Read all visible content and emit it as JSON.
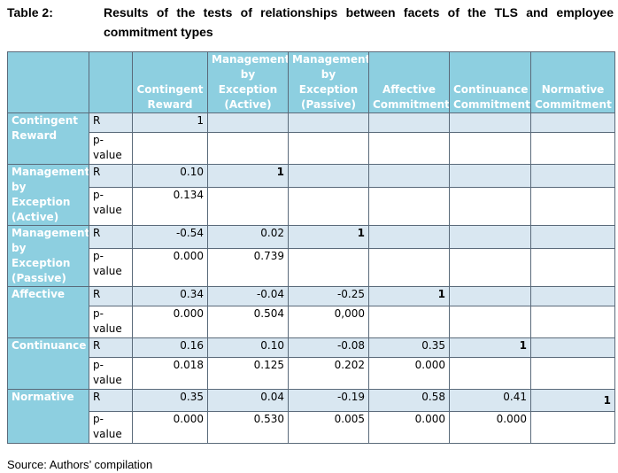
{
  "caption": {
    "label": "Table 2:",
    "text": "Results of the tests of relationships between facets of the TLS and employee commitment types"
  },
  "columns": [
    "Contingent Reward",
    "Management by Exception (Active)",
    "Management by Exception (Passive)",
    "Affective Commitment",
    "Continuance Commitment",
    "Normative Commitment"
  ],
  "rows": [
    {
      "name": "Contingent Reward",
      "r_label": "R",
      "p_label": "p-value",
      "r": [
        "1",
        "",
        "",
        "",
        "",
        ""
      ],
      "p": [
        "",
        "",
        "",
        "",
        "",
        ""
      ]
    },
    {
      "name": "Management by Exception (Active)",
      "r_label": "R",
      "p_label": "p-value",
      "r": [
        "0.10",
        "1",
        "",
        "",
        "",
        ""
      ],
      "p": [
        "0.134",
        "",
        "",
        "",
        "",
        ""
      ]
    },
    {
      "name": "Management by Exception (Passive)",
      "r_label": "R",
      "p_label": "p-value",
      "r": [
        "-0.54",
        "0.02",
        "1",
        "",
        "",
        ""
      ],
      "p": [
        "0.000",
        "0.739",
        "",
        "",
        "",
        ""
      ]
    },
    {
      "name": "Affective",
      "r_label": "R",
      "p_label": "p-value",
      "r": [
        "0.34",
        "-0.04",
        "-0.25",
        "1",
        "",
        ""
      ],
      "p": [
        "0.000",
        "0.504",
        "0,000",
        "",
        "",
        ""
      ]
    },
    {
      "name": "Continuance",
      "r_label": "R",
      "p_label": "p-value",
      "r": [
        "0.16",
        "0.10",
        "-0.08",
        "0.35",
        "1",
        ""
      ],
      "p": [
        "0.018",
        "0.125",
        "0.202",
        "0.000",
        "",
        ""
      ]
    },
    {
      "name": "Normative",
      "r_label": "R",
      "p_label": "p-value",
      "r": [
        "0.35",
        "0.04",
        "-0.19",
        "0.58",
        "0.41",
        "1"
      ],
      "p": [
        "0.000",
        "0.530",
        "0.005",
        "0.000",
        "0.000",
        ""
      ]
    }
  ],
  "source": "Source: Authors’ compilation",
  "colors": {
    "header_bg": "#8dcfe0",
    "header_text": "#ffffff",
    "r_row_bg": "#d9e7f1",
    "border": "#5a6a7a"
  }
}
